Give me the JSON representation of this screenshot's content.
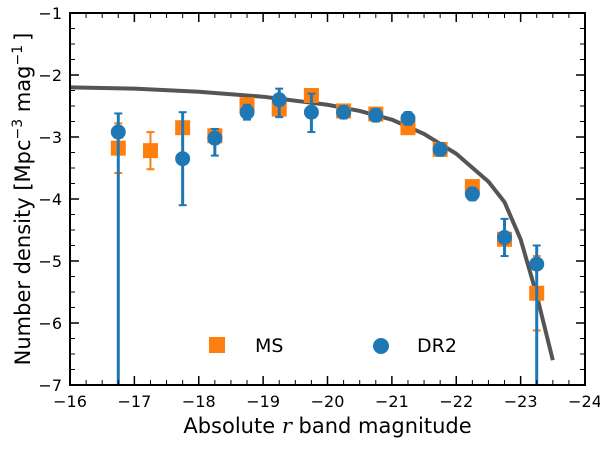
{
  "chart_data": {
    "type": "scatter",
    "xlabel_prefix": "Absolute ",
    "xlabel_var": "r",
    "xlabel_suffix": " band magnitude",
    "ylabel_main": "Number density [Mpc",
    "ylabel_exp1": "−3",
    "ylabel_mid": " mag",
    "ylabel_exp2": "−1",
    "ylabel_end": "]",
    "xlim": [
      -16,
      -24
    ],
    "ylim": [
      -7,
      -1
    ],
    "x_ticks": [
      -16,
      -17,
      -18,
      -19,
      -20,
      -21,
      -22,
      -23,
      -24
    ],
    "x_tick_labels": [
      "−16",
      "−17",
      "−18",
      "−19",
      "−20",
      "−21",
      "−22",
      "−23",
      "−24"
    ],
    "y_ticks": [
      -7,
      -6,
      -5,
      -4,
      -3,
      -2,
      -1
    ],
    "y_tick_labels": [
      "−7",
      "−6",
      "−5",
      "−4",
      "−3",
      "−2",
      "−1"
    ],
    "legend": {
      "position": "lower-center",
      "entries": [
        "MS",
        "DR2"
      ]
    },
    "series": [
      {
        "name": "MS",
        "marker": "square",
        "color": "#ff7f0e",
        "x": [
          -16.75,
          -17.25,
          -17.75,
          -18.25,
          -18.75,
          -19.25,
          -19.75,
          -20.25,
          -20.75,
          -21.25,
          -21.75,
          -22.25,
          -22.75,
          -23.25
        ],
        "y": [
          -3.18,
          -3.22,
          -2.85,
          -2.98,
          -2.48,
          -2.55,
          -2.33,
          -2.58,
          -2.63,
          -2.85,
          -3.2,
          -3.8,
          -4.65,
          -5.52
        ],
        "yerr": [
          0.4,
          0.3,
          0.1,
          0.1,
          0.08,
          0.1,
          0.07,
          0.07,
          0.07,
          0.08,
          0.1,
          0.1,
          0.1,
          0.6
        ]
      },
      {
        "name": "DR2",
        "marker": "circle",
        "color": "#1f77b4",
        "x": [
          -16.75,
          -17.75,
          -18.25,
          -18.75,
          -19.25,
          -19.75,
          -20.25,
          -20.75,
          -21.25,
          -21.75,
          -22.25,
          -22.75,
          -23.25
        ],
        "y": [
          -2.92,
          -3.35,
          -3.02,
          -2.6,
          -2.4,
          -2.6,
          -2.6,
          -2.65,
          -2.7,
          -3.2,
          -3.92,
          -4.62,
          -5.05
        ],
        "yerr_low": [
          4.5,
          0.75,
          0.28,
          0.12,
          0.28,
          0.32,
          0.1,
          0.1,
          0.1,
          0.1,
          0.1,
          0.3,
          2.5
        ],
        "yerr_high": [
          0.3,
          0.75,
          0.15,
          0.12,
          0.18,
          0.3,
          0.1,
          0.1,
          0.1,
          0.1,
          0.1,
          0.3,
          0.3
        ]
      },
      {
        "name": "fit",
        "type": "line",
        "color": "#555555",
        "x": [
          -16,
          -17,
          -18,
          -19,
          -20,
          -20.5,
          -21,
          -21.5,
          -22,
          -22.5,
          -22.75,
          -23,
          -23.25,
          -23.5
        ],
        "y": [
          -2.2,
          -2.22,
          -2.27,
          -2.35,
          -2.48,
          -2.58,
          -2.72,
          -2.95,
          -3.27,
          -3.72,
          -4.05,
          -4.65,
          -5.55,
          -6.6
        ]
      }
    ]
  }
}
